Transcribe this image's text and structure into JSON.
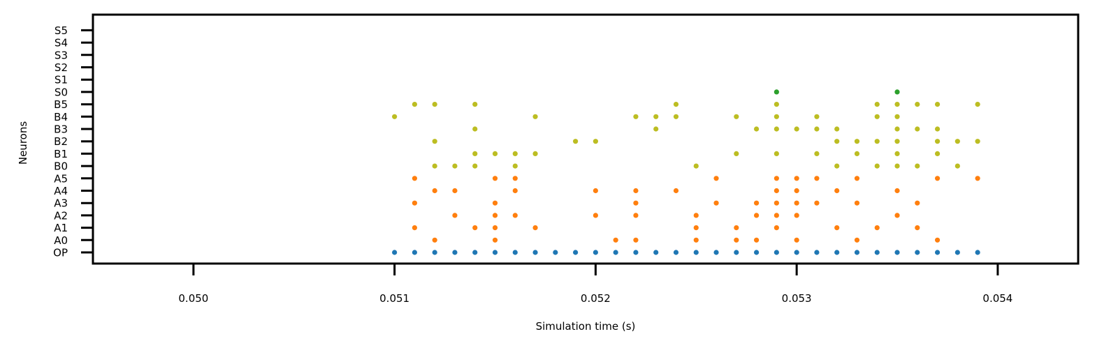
{
  "chart_data": {
    "type": "scatter",
    "xlabel": "Simulation time (s)",
    "ylabel": "Neurons",
    "xlim": [
      0.0495,
      0.0544
    ],
    "x_ticks": [
      0.05,
      0.051,
      0.052,
      0.053,
      0.054
    ],
    "x_tick_labels": [
      "0.050",
      "0.051",
      "0.052",
      "0.053",
      "0.054"
    ],
    "categories": [
      "OP",
      "A0",
      "A1",
      "A2",
      "A3",
      "A4",
      "A5",
      "B0",
      "B1",
      "B2",
      "B3",
      "B4",
      "B5",
      "S0",
      "S1",
      "S2",
      "S3",
      "S4",
      "S5"
    ],
    "grid": false,
    "legend": "none",
    "series": [
      {
        "color": "#1f77b4",
        "points": [
          {
            "neuron": "OP",
            "times": [
              0.051,
              0.0511,
              0.0512,
              0.0513,
              0.0514,
              0.0515,
              0.0516,
              0.0517,
              0.0518,
              0.0519,
              0.052,
              0.0521,
              0.0522,
              0.0523,
              0.0524,
              0.0525,
              0.0526,
              0.0527,
              0.0528,
              0.0529,
              0.053,
              0.0531,
              0.0532,
              0.0533,
              0.0534,
              0.0535,
              0.0536,
              0.0537,
              0.0538,
              0.0539
            ]
          }
        ]
      },
      {
        "color": "#ff7f0e",
        "points": [
          {
            "neuron": "A0",
            "times": [
              0.0512,
              0.0515,
              0.0521,
              0.0522,
              0.0525,
              0.0527,
              0.0528,
              0.053,
              0.0533,
              0.0537
            ]
          },
          {
            "neuron": "A1",
            "times": [
              0.0511,
              0.0514,
              0.0515,
              0.0517,
              0.0525,
              0.0527,
              0.0529,
              0.0532,
              0.0534,
              0.0536
            ]
          },
          {
            "neuron": "A2",
            "times": [
              0.0513,
              0.0515,
              0.0516,
              0.052,
              0.0522,
              0.0525,
              0.0528,
              0.0529,
              0.053,
              0.0535
            ]
          },
          {
            "neuron": "A3",
            "times": [
              0.0511,
              0.0515,
              0.0522,
              0.0526,
              0.0528,
              0.0529,
              0.053,
              0.0531,
              0.0533,
              0.0536
            ]
          },
          {
            "neuron": "A4",
            "times": [
              0.0512,
              0.0513,
              0.0516,
              0.052,
              0.0522,
              0.0524,
              0.0529,
              0.053,
              0.0532,
              0.0535
            ]
          },
          {
            "neuron": "A5",
            "times": [
              0.0511,
              0.0515,
              0.0516,
              0.0526,
              0.0529,
              0.053,
              0.0531,
              0.0533,
              0.0537,
              0.0539
            ]
          }
        ]
      },
      {
        "color": "#bcbd22",
        "points": [
          {
            "neuron": "B0",
            "times": [
              0.0512,
              0.0513,
              0.0514,
              0.0516,
              0.0525,
              0.0532,
              0.0534,
              0.0535,
              0.0536,
              0.0538
            ]
          },
          {
            "neuron": "B1",
            "times": [
              0.0514,
              0.0515,
              0.0516,
              0.0517,
              0.0527,
              0.0529,
              0.0531,
              0.0533,
              0.0535,
              0.0537
            ]
          },
          {
            "neuron": "B2",
            "times": [
              0.0512,
              0.0519,
              0.052,
              0.0532,
              0.0533,
              0.0534,
              0.0535,
              0.0537,
              0.0538,
              0.0539
            ]
          },
          {
            "neuron": "B3",
            "times": [
              0.0514,
              0.0523,
              0.0528,
              0.0529,
              0.053,
              0.0531,
              0.0532,
              0.0535,
              0.0536,
              0.0537
            ]
          },
          {
            "neuron": "B4",
            "times": [
              0.051,
              0.0517,
              0.0522,
              0.0523,
              0.0524,
              0.0527,
              0.0529,
              0.0531,
              0.0534,
              0.0535
            ]
          },
          {
            "neuron": "B5",
            "times": [
              0.0511,
              0.0512,
              0.0514,
              0.0524,
              0.0529,
              0.0534,
              0.0535,
              0.0536,
              0.0537,
              0.0539
            ]
          }
        ]
      },
      {
        "color": "#2ca02c",
        "points": [
          {
            "neuron": "S0",
            "times": [
              0.0529,
              0.0535
            ]
          }
        ]
      }
    ]
  }
}
